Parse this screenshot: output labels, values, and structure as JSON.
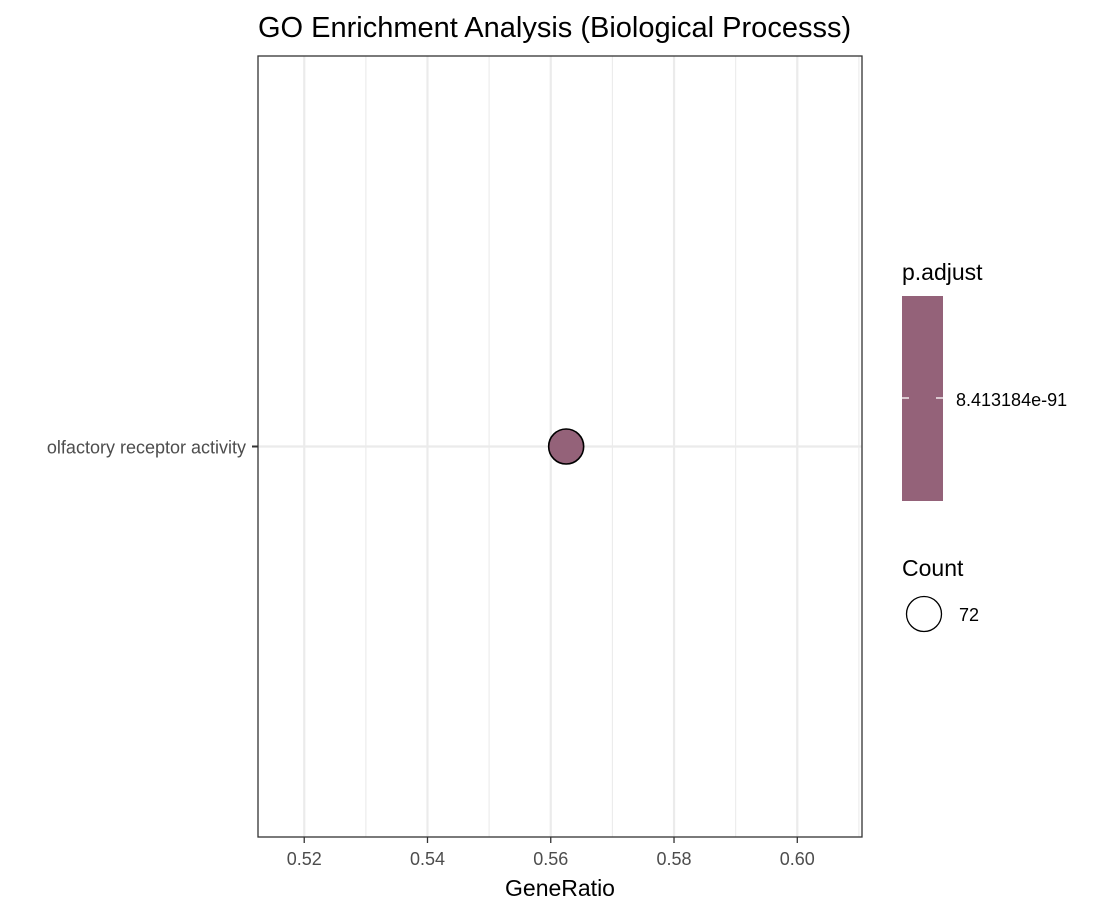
{
  "chart_data": {
    "type": "scatter",
    "title": "GO Enrichment Analysis (Biological Processs)",
    "xlabel": "GeneRatio",
    "ylabel": "",
    "xlim": [
      0.5125,
      0.6105
    ],
    "x_major_ticks": [
      0.52,
      0.54,
      0.56,
      0.58,
      0.6
    ],
    "x_tick_labels": [
      "0.52",
      "0.54",
      "0.56",
      "0.58",
      "0.60"
    ],
    "x_minor_ticks": [
      0.53,
      0.55,
      0.57,
      0.59,
      0.61
    ],
    "categories": [
      "olfactory receptor activity"
    ],
    "points": [
      {
        "term": "olfactory receptor activity",
        "gene_ratio": 0.5625,
        "count": 72,
        "p_adjust": 8.413184e-91,
        "color": "#946279"
      }
    ],
    "grid": true,
    "legend_placement": "right",
    "legends": {
      "color": {
        "title": "p.adjust",
        "label": "8.413184e-91",
        "color": "#946279"
      },
      "size": {
        "title": "Count",
        "label": "72"
      }
    }
  }
}
